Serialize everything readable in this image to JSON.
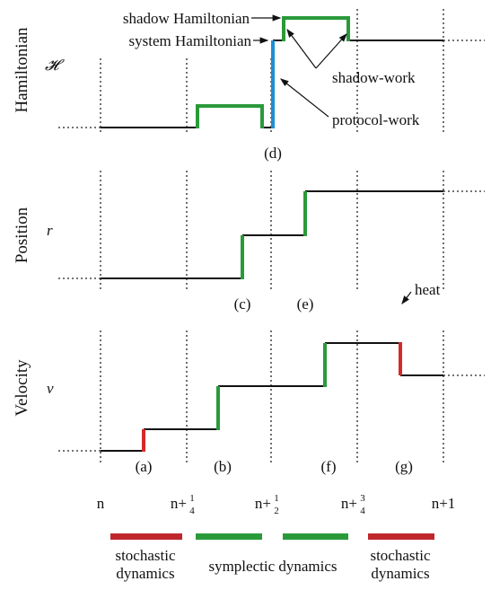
{
  "panels": [
    {
      "ylabel": "Hamiltonian",
      "symbol": "𝓗",
      "tags": [
        "(d)"
      ]
    },
    {
      "ylabel": "Position",
      "symbol": "r",
      "tags": [
        "(c)",
        "(e)"
      ]
    },
    {
      "ylabel": "Velocity",
      "symbol": "v",
      "tags": [
        "(a)",
        "(b)",
        "(f)",
        "(g)"
      ]
    }
  ],
  "annotations": {
    "shadow": "shadow Hamiltonian",
    "system": "system Hamiltonian",
    "shadow_work": "shadow-work",
    "protocol_work": "protocol-work",
    "heat": "heat"
  },
  "timesteps": [
    {
      "label": "n"
    },
    {
      "label": "n+",
      "num": "1",
      "den": "4"
    },
    {
      "label": "n+",
      "num": "1",
      "den": "2"
    },
    {
      "label": "n+",
      "num": "3",
      "den": "4"
    },
    {
      "label": "n+1"
    }
  ],
  "legend": [
    {
      "line1": "stochastic",
      "line2": "dynamics"
    },
    {
      "text": "symplectic dynamics"
    },
    {
      "line1": "stochastic",
      "line2": "dynamics"
    }
  ]
}
